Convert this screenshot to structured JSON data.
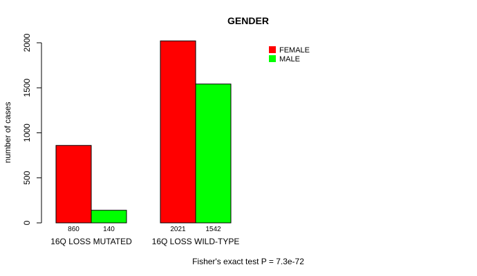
{
  "chart_data": {
    "type": "bar",
    "title": "GENDER",
    "ylabel": "number of cases",
    "xlabel": "",
    "ylim": [
      0,
      2000
    ],
    "yticks": [
      0,
      500,
      1000,
      1500,
      2000
    ],
    "grid": false,
    "legend_position": "top-right",
    "categories": [
      "16Q LOSS MUTATED",
      "16Q LOSS WILD-TYPE"
    ],
    "series": [
      {
        "name": "FEMALE",
        "color": "#ff0000",
        "values": [
          860,
          2021
        ]
      },
      {
        "name": "MALE",
        "color": "#00ff00",
        "values": [
          140,
          1542
        ]
      }
    ],
    "data_labels": [
      [
        "860",
        "140"
      ],
      [
        "2021",
        "1542"
      ]
    ],
    "footnote": "Fisher's exact test P = 7.3e-72"
  }
}
